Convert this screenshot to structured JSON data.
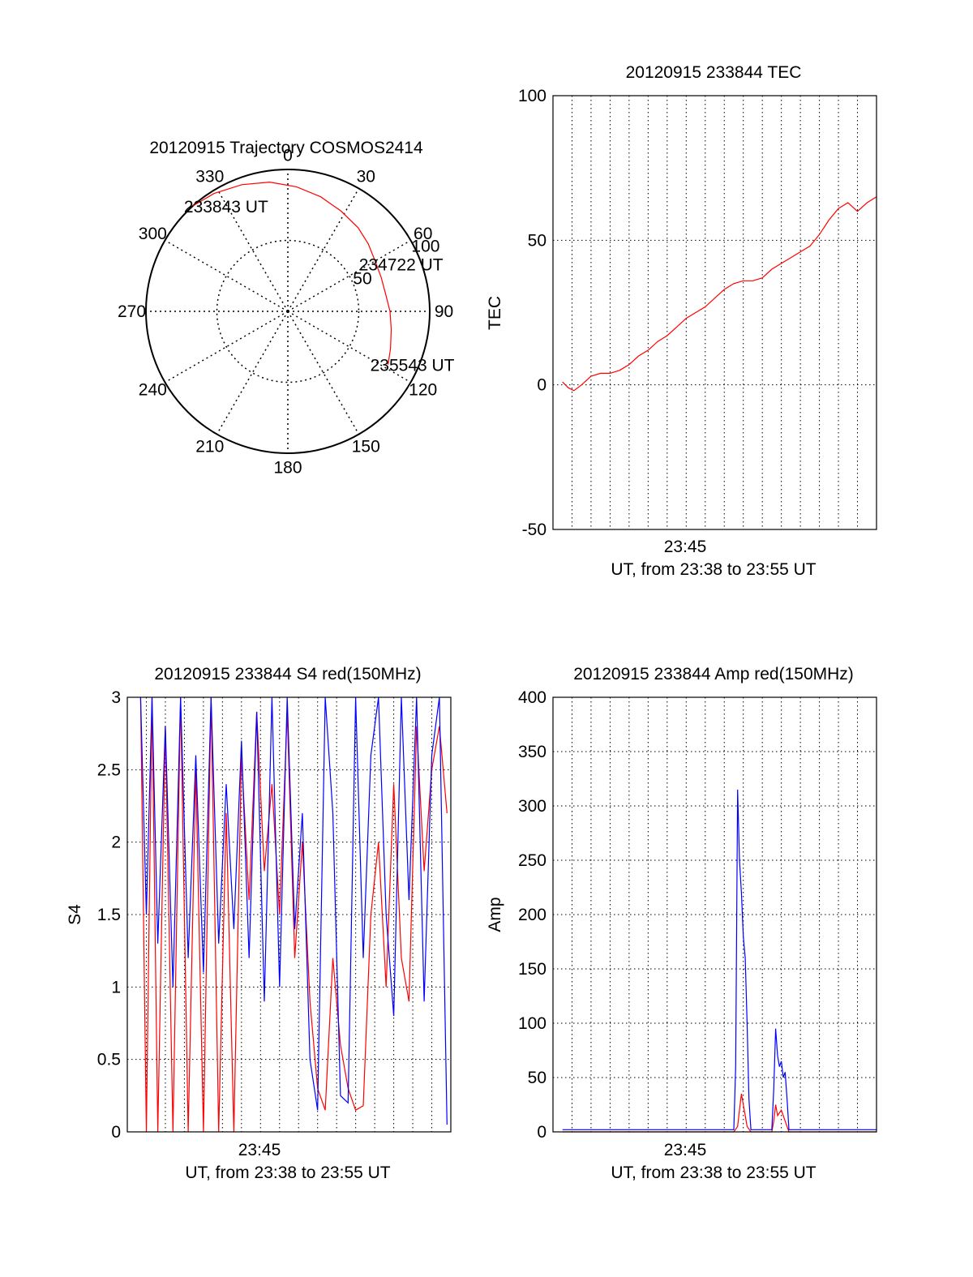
{
  "colors": {
    "red": "#ff0000",
    "blue": "#0000ff",
    "axis": "#000000",
    "grid": "#000000"
  },
  "chart_data": [
    {
      "type": "polar",
      "title": "20120915 Trajectory COSMOS2414",
      "angle_labels": [
        "0",
        "30",
        "60",
        "90",
        "120",
        "150",
        "180",
        "210",
        "240",
        "270",
        "300",
        "330"
      ],
      "radius_labels": [
        "50",
        "100"
      ],
      "grid": true,
      "series": [
        {
          "color": "red",
          "azimuth": [
            318,
            328,
            340,
            352,
            4,
            16,
            28,
            40,
            50,
            60,
            70,
            80,
            90,
            100,
            110,
            118
          ],
          "radius": [
            100,
            98,
            95,
            92,
            88,
            84,
            80,
            77,
            74,
            71,
            70,
            70,
            72,
            74,
            77,
            80
          ]
        }
      ],
      "annotations": [
        {
          "text": "233843 UT",
          "azimuth": 318,
          "radius": 100
        },
        {
          "text": "234722 UT",
          "azimuth": 62,
          "radius": 71
        },
        {
          "text": "235543 UT",
          "azimuth": 118,
          "radius": 80
        }
      ]
    },
    {
      "type": "line",
      "title": "20120915 233844 TEC",
      "ylabel": "TEC",
      "xlabel": "UT, from 23:38 to 23:55 UT",
      "xtick_label": "23:45",
      "xlim": [
        0,
        17
      ],
      "ylim": [
        -50,
        100
      ],
      "yticks": [
        "-50",
        "0",
        "50",
        "100"
      ],
      "grid": true,
      "series": [
        {
          "color": "red",
          "x": [
            0.5,
            0.8,
            1.1,
            1.5,
            2.0,
            2.5,
            3.0,
            3.5,
            4.0,
            4.5,
            5.0,
            5.5,
            6.0,
            6.5,
            7.0,
            7.5,
            8.0,
            8.5,
            9.0,
            9.5,
            10.0,
            10.5,
            11.0,
            11.5,
            12.0,
            12.5,
            13.0,
            13.5,
            14.0,
            14.5,
            15.0,
            15.5,
            16.0,
            16.5,
            17.0
          ],
          "y": [
            1,
            -1,
            -2,
            0,
            3,
            4,
            4,
            5,
            7,
            10,
            12,
            15,
            17,
            20,
            23,
            25,
            27,
            30,
            33,
            35,
            36,
            36,
            37,
            40,
            42,
            44,
            46,
            48,
            52,
            57,
            61,
            63,
            60,
            63,
            65
          ]
        }
      ]
    },
    {
      "type": "line",
      "title": "20120915 233844 S4 red(150MHz)",
      "ylabel": "S4",
      "xlabel": "UT, from 23:38 to 23:55 UT",
      "xtick_label": "23:45",
      "xlim": [
        0,
        17
      ],
      "ylim": [
        0,
        3
      ],
      "yticks": [
        "0",
        "0.5",
        "1",
        "1.5",
        "2",
        "2.5",
        "3"
      ],
      "grid": true,
      "series": [
        {
          "color": "red",
          "x": [
            0.7,
            1.0,
            1.3,
            1.6,
            2.0,
            2.4,
            2.8,
            3.2,
            3.6,
            4.0,
            4.4,
            4.8,
            5.2,
            5.6,
            6.0,
            6.4,
            6.8,
            7.2,
            7.6,
            8.0,
            8.4,
            8.8,
            9.2,
            9.6,
            10.0,
            10.4,
            10.8,
            11.2,
            11.6,
            12.0,
            12.4,
            12.8,
            13.2,
            13.6,
            14.0,
            14.4,
            14.8,
            15.2,
            15.6,
            16.0,
            16.4,
            16.8
          ],
          "y": [
            3.0,
            0,
            3.0,
            0,
            2.8,
            0,
            3.0,
            0,
            2.5,
            0,
            3.0,
            0,
            2.2,
            0,
            2.6,
            1.6,
            2.9,
            1.8,
            2.4,
            1.5,
            2.9,
            1.2,
            2.0,
            0.9,
            0.3,
            0.15,
            1.2,
            0.6,
            0.3,
            0.15,
            0.18,
            1.5,
            2.0,
            1.0,
            2.4,
            1.2,
            0.9,
            2.8,
            1.8,
            2.5,
            2.8,
            2.2
          ]
        },
        {
          "color": "blue",
          "x": [
            0.7,
            1.0,
            1.3,
            1.6,
            2.0,
            2.4,
            2.8,
            3.2,
            3.6,
            4.0,
            4.4,
            4.8,
            5.2,
            5.6,
            6.0,
            6.4,
            6.8,
            7.2,
            7.6,
            8.0,
            8.4,
            8.8,
            9.2,
            9.6,
            10.0,
            10.4,
            10.8,
            11.2,
            11.6,
            12.0,
            12.4,
            12.8,
            13.2,
            13.6,
            14.0,
            14.4,
            14.8,
            15.2,
            15.6,
            16.0,
            16.4,
            16.8
          ],
          "y": [
            3.0,
            1.5,
            3.0,
            1.3,
            2.8,
            1.0,
            3.0,
            1.2,
            2.6,
            1.1,
            3.0,
            1.3,
            2.4,
            1.4,
            2.7,
            1.2,
            2.9,
            0.9,
            3.0,
            1.0,
            3.0,
            1.4,
            2.2,
            0.5,
            0.15,
            3.0,
            2.2,
            0.25,
            0.2,
            3.0,
            1.2,
            2.6,
            3.0,
            1.5,
            0.8,
            3.0,
            1.6,
            3.0,
            0.9,
            2.6,
            3.0,
            0.05
          ]
        }
      ]
    },
    {
      "type": "line",
      "title": "20120915 233844 Amp red(150MHz)",
      "ylabel": "Amp",
      "xlabel": "UT, from 23:38 to 23:55 UT",
      "xtick_label": "23:45",
      "xlim": [
        0,
        17
      ],
      "ylim": [
        0,
        400
      ],
      "yticks": [
        "0",
        "50",
        "100",
        "150",
        "200",
        "250",
        "300",
        "350",
        "400"
      ],
      "grid": true,
      "series": [
        {
          "color": "red",
          "x": [
            0.5,
            9.5,
            9.7,
            9.8,
            9.9,
            10.0,
            10.1,
            10.2,
            10.4,
            11.0,
            11.5,
            11.6,
            11.7,
            11.8,
            12.0,
            12.2,
            12.4,
            17.0
          ],
          "y": [
            0,
            0,
            5,
            20,
            35,
            25,
            15,
            5,
            0,
            0,
            0,
            10,
            25,
            15,
            20,
            10,
            0,
            0
          ]
        },
        {
          "color": "blue",
          "x": [
            0.5,
            9.5,
            9.6,
            9.7,
            9.8,
            9.9,
            10.0,
            10.1,
            10.2,
            10.3,
            10.4,
            11.0,
            11.5,
            11.6,
            11.7,
            11.8,
            11.9,
            12.0,
            12.1,
            12.2,
            12.3,
            12.4,
            17.0
          ],
          "y": [
            2,
            2,
            60,
            315,
            250,
            220,
            180,
            160,
            100,
            30,
            2,
            2,
            2,
            40,
            95,
            70,
            60,
            65,
            50,
            55,
            30,
            2,
            2
          ]
        }
      ]
    }
  ]
}
